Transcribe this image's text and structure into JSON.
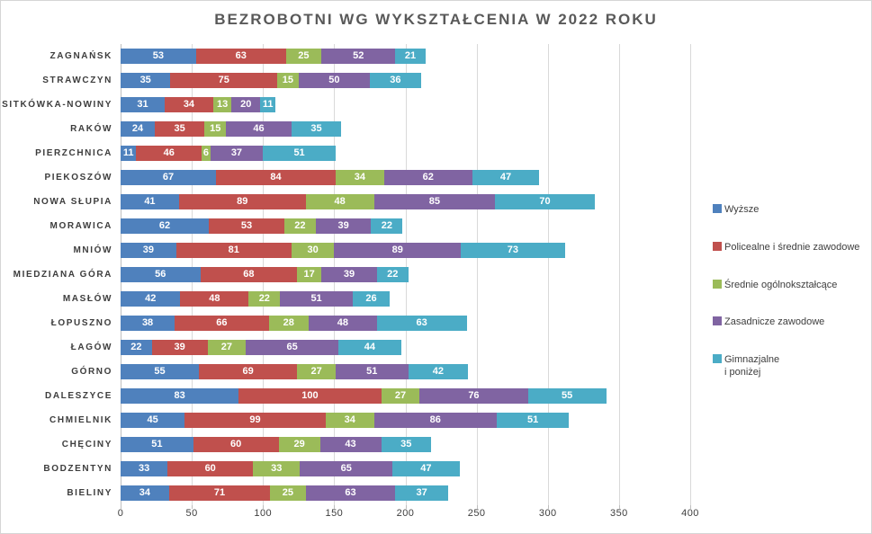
{
  "chart_data": {
    "type": "bar",
    "orientation": "horizontal",
    "stacked": true,
    "title": "BEZROBOTNI WG WYKSZTAŁCENIA W 2022 ROKU",
    "categories": [
      "ZAGNAŃSK",
      "STRAWCZYN",
      "SITKÓWKA-NOWINY",
      "RAKÓW",
      "PIERZCHNICA",
      "PIEKOSZÓW",
      "NOWA SŁUPIA",
      "MORAWICA",
      "MNIÓW",
      "MIEDZIANA GÓRA",
      "MASŁÓW",
      "ŁOPUSZNO",
      "ŁAGÓW",
      "GÓRNO",
      "DALESZYCE",
      "CHMIELNIK",
      "CHĘCINY",
      "BODZENTYN",
      "BIELINY"
    ],
    "series": [
      {
        "name": "Wyższe",
        "color": "#4F81BD",
        "values": [
          53,
          35,
          31,
          24,
          11,
          67,
          41,
          62,
          39,
          56,
          42,
          38,
          22,
          55,
          83,
          45,
          51,
          33,
          34
        ]
      },
      {
        "name": "Policealne i średnie zawodowe",
        "color": "#C0504D",
        "values": [
          63,
          75,
          34,
          35,
          46,
          84,
          89,
          53,
          81,
          68,
          48,
          66,
          39,
          69,
          100,
          99,
          60,
          60,
          71
        ]
      },
      {
        "name": "Średnie ogólnokształcące",
        "color": "#9BBB59",
        "values": [
          25,
          15,
          13,
          15,
          6,
          34,
          48,
          22,
          30,
          17,
          22,
          28,
          27,
          27,
          27,
          34,
          29,
          33,
          25
        ]
      },
      {
        "name": "Zasadnicze zawodowe",
        "color": "#8064A2",
        "values": [
          52,
          50,
          20,
          46,
          37,
          62,
          85,
          39,
          89,
          39,
          51,
          48,
          65,
          51,
          76,
          86,
          43,
          65,
          63
        ]
      },
      {
        "name": "Gimnazjalne\ni poniżej",
        "color": "#4BACC6",
        "values": [
          21,
          36,
          11,
          35,
          51,
          47,
          70,
          22,
          73,
          22,
          26,
          63,
          44,
          42,
          55,
          51,
          35,
          47,
          37
        ]
      }
    ],
    "x_ticks": [
      0,
      50,
      100,
      150,
      200,
      250,
      300,
      350,
      400
    ],
    "xlim": [
      0,
      400
    ],
    "grid": true,
    "gridline_color": "#D9D9D9",
    "axis_color": "#BFBFBF",
    "title_color": "#595959",
    "label_color": "#3D3D3D",
    "value_label_color": "#FFFFFF",
    "legend_position": "right"
  }
}
